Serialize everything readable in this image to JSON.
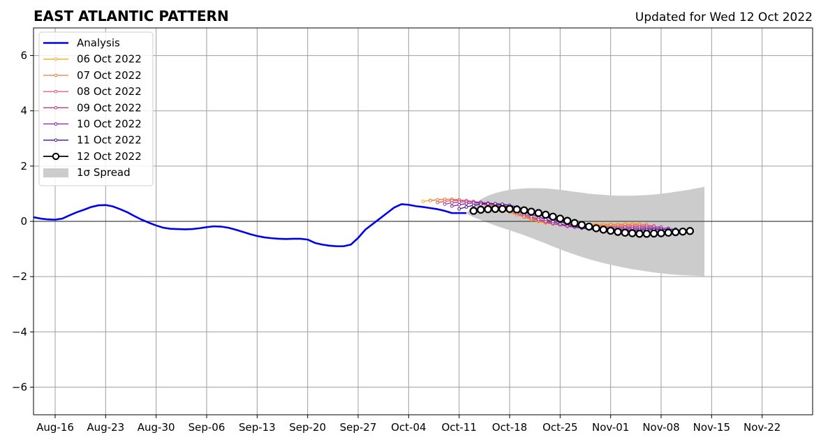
{
  "chart_data": {
    "type": "line",
    "title": "EAST ATLANTIC PATTERN",
    "subtitle": "Updated for Wed 12 Oct 2022",
    "xlabel": "",
    "ylabel": "",
    "x_range": [
      "2022-08-13",
      "2022-11-29"
    ],
    "ylim": [
      -7,
      7
    ],
    "grid": true,
    "legend_position": "top-left",
    "x_ticks": [
      {
        "date": "2022-08-16",
        "label": "Aug-16"
      },
      {
        "date": "2022-08-23",
        "label": "Aug-23"
      },
      {
        "date": "2022-08-30",
        "label": "Aug-30"
      },
      {
        "date": "2022-09-06",
        "label": "Sep-06"
      },
      {
        "date": "2022-09-13",
        "label": "Sep-13"
      },
      {
        "date": "2022-09-20",
        "label": "Sep-20"
      },
      {
        "date": "2022-09-27",
        "label": "Sep-27"
      },
      {
        "date": "2022-10-04",
        "label": "Oct-04"
      },
      {
        "date": "2022-10-11",
        "label": "Oct-11"
      },
      {
        "date": "2022-10-18",
        "label": "Oct-18"
      },
      {
        "date": "2022-10-25",
        "label": "Oct-25"
      },
      {
        "date": "2022-11-01",
        "label": "Nov-01"
      },
      {
        "date": "2022-11-08",
        "label": "Nov-08"
      },
      {
        "date": "2022-11-15",
        "label": "Nov-15"
      },
      {
        "date": "2022-11-22",
        "label": "Nov-22"
      }
    ],
    "y_ticks": [
      {
        "value": 6,
        "label": "6"
      },
      {
        "value": 4,
        "label": "4"
      },
      {
        "value": 2,
        "label": "2"
      },
      {
        "value": 0,
        "label": "0"
      },
      {
        "value": -2,
        "label": "−2"
      },
      {
        "value": -4,
        "label": "−4"
      },
      {
        "value": -6,
        "label": "−6"
      }
    ],
    "analysis": {
      "name": "Analysis",
      "color": "#0000ee",
      "dates": [
        "2022-08-13",
        "2022-08-14",
        "2022-08-15",
        "2022-08-16",
        "2022-08-17",
        "2022-08-18",
        "2022-08-19",
        "2022-08-20",
        "2022-08-21",
        "2022-08-22",
        "2022-08-23",
        "2022-08-24",
        "2022-08-25",
        "2022-08-26",
        "2022-08-27",
        "2022-08-28",
        "2022-08-29",
        "2022-08-30",
        "2022-08-31",
        "2022-09-01",
        "2022-09-02",
        "2022-09-03",
        "2022-09-04",
        "2022-09-05",
        "2022-09-06",
        "2022-09-07",
        "2022-09-08",
        "2022-09-09",
        "2022-09-10",
        "2022-09-11",
        "2022-09-12",
        "2022-09-13",
        "2022-09-14",
        "2022-09-15",
        "2022-09-16",
        "2022-09-17",
        "2022-09-18",
        "2022-09-19",
        "2022-09-20",
        "2022-09-21",
        "2022-09-22",
        "2022-09-23",
        "2022-09-24",
        "2022-09-25",
        "2022-09-26",
        "2022-09-27",
        "2022-09-28",
        "2022-09-29",
        "2022-09-30",
        "2022-10-01",
        "2022-10-02",
        "2022-10-03",
        "2022-10-04",
        "2022-10-05",
        "2022-10-06",
        "2022-10-07",
        "2022-10-08",
        "2022-10-09",
        "2022-10-10",
        "2022-10-11",
        "2022-10-12"
      ],
      "values": [
        0.15,
        0.1,
        0.07,
        0.06,
        0.1,
        0.22,
        0.33,
        0.42,
        0.52,
        0.58,
        0.59,
        0.54,
        0.44,
        0.33,
        0.19,
        0.06,
        -0.05,
        -0.15,
        -0.23,
        -0.27,
        -0.28,
        -0.29,
        -0.28,
        -0.25,
        -0.21,
        -0.18,
        -0.19,
        -0.23,
        -0.3,
        -0.38,
        -0.46,
        -0.53,
        -0.58,
        -0.61,
        -0.63,
        -0.64,
        -0.63,
        -0.63,
        -0.66,
        -0.78,
        -0.84,
        -0.88,
        -0.9,
        -0.9,
        -0.84,
        -0.6,
        -0.3,
        -0.1,
        0.1,
        0.3,
        0.5,
        0.62,
        0.6,
        0.55,
        0.52,
        0.48,
        0.44,
        0.38,
        0.3,
        0.3,
        0.3
      ]
    },
    "forecasts": [
      {
        "name": "06 Oct 2022",
        "color": "#f9a825",
        "start": "2022-10-06",
        "values": [
          0.72,
          0.76,
          0.78,
          0.79,
          0.8,
          0.78,
          0.74,
          0.7,
          0.64,
          0.58,
          0.5,
          0.42,
          0.33,
          0.24,
          0.15,
          0.06,
          -0.01,
          -0.06,
          -0.1,
          -0.12,
          -0.13,
          -0.13,
          -0.12,
          -0.11,
          -0.1,
          -0.1,
          -0.1,
          -0.1,
          -0.09,
          -0.09,
          -0.08
        ]
      },
      {
        "name": "07 Oct 2022",
        "color": "#f07a3a",
        "start": "2022-10-07",
        "values": [
          0.75,
          0.78,
          0.8,
          0.8,
          0.78,
          0.75,
          0.7,
          0.64,
          0.57,
          0.5,
          0.42,
          0.33,
          0.24,
          0.16,
          0.08,
          0.01,
          -0.05,
          -0.09,
          -0.12,
          -0.14,
          -0.15,
          -0.15,
          -0.15,
          -0.14,
          -0.14,
          -0.13,
          -0.13,
          -0.12,
          -0.12,
          -0.11,
          -0.11
        ]
      },
      {
        "name": "08 Oct 2022",
        "color": "#d9536d",
        "start": "2022-10-08",
        "values": [
          0.68,
          0.72,
          0.75,
          0.76,
          0.75,
          0.72,
          0.67,
          0.61,
          0.54,
          0.46,
          0.38,
          0.29,
          0.2,
          0.12,
          0.04,
          -0.03,
          -0.09,
          -0.13,
          -0.16,
          -0.18,
          -0.19,
          -0.2,
          -0.2,
          -0.19,
          -0.19,
          -0.18,
          -0.18,
          -0.17,
          -0.17,
          -0.16,
          -0.16
        ]
      },
      {
        "name": "09 Oct 2022",
        "color": "#b03a92",
        "start": "2022-10-09",
        "values": [
          0.62,
          0.67,
          0.7,
          0.71,
          0.71,
          0.69,
          0.65,
          0.59,
          0.52,
          0.44,
          0.35,
          0.26,
          0.17,
          0.08,
          0.0,
          -0.07,
          -0.13,
          -0.18,
          -0.21,
          -0.23,
          -0.24,
          -0.24,
          -0.24,
          -0.23,
          -0.23,
          -0.22,
          -0.22,
          -0.21,
          -0.21,
          -0.2,
          -0.2
        ]
      },
      {
        "name": "10 Oct 2022",
        "color": "#8a1bab",
        "start": "2022-10-10",
        "values": [
          0.55,
          0.6,
          0.64,
          0.67,
          0.67,
          0.66,
          0.63,
          0.58,
          0.51,
          0.43,
          0.34,
          0.25,
          0.16,
          0.07,
          -0.01,
          -0.09,
          -0.16,
          -0.21,
          -0.25,
          -0.27,
          -0.28,
          -0.29,
          -0.29,
          -0.28,
          -0.28,
          -0.27,
          -0.27,
          -0.26,
          -0.26,
          -0.25,
          -0.25
        ]
      },
      {
        "name": "11 Oct 2022",
        "color": "#4b0d8f",
        "start": "2022-10-11",
        "values": [
          0.45,
          0.52,
          0.58,
          0.62,
          0.64,
          0.64,
          0.62,
          0.58,
          0.52,
          0.44,
          0.35,
          0.26,
          0.17,
          0.08,
          -0.01,
          -0.09,
          -0.17,
          -0.23,
          -0.28,
          -0.31,
          -0.33,
          -0.34,
          -0.34,
          -0.33,
          -0.33,
          -0.32,
          -0.31,
          -0.3,
          -0.3,
          -0.29,
          -0.28
        ]
      },
      {
        "name": "12 Oct 2022",
        "color": "#000000",
        "start": "2022-10-13",
        "values": [
          0.38,
          0.42,
          0.44,
          0.45,
          0.45,
          0.45,
          0.43,
          0.4,
          0.35,
          0.3,
          0.24,
          0.17,
          0.1,
          0.02,
          -0.06,
          -0.13,
          -0.19,
          -0.25,
          -0.3,
          -0.34,
          -0.38,
          -0.41,
          -0.43,
          -0.45,
          -0.45,
          -0.44,
          -0.43,
          -0.41,
          -0.39,
          -0.37,
          -0.35
        ]
      }
    ],
    "spread": {
      "name": "1σ Spread",
      "color": "#cccccc",
      "start": "2022-10-12",
      "upper": [
        0.3,
        0.6,
        0.8,
        0.93,
        1.02,
        1.09,
        1.14,
        1.17,
        1.19,
        1.2,
        1.2,
        1.19,
        1.17,
        1.14,
        1.11,
        1.07,
        1.04,
        1.0,
        0.98,
        0.96,
        0.94,
        0.93,
        0.93,
        0.93,
        0.94,
        0.95,
        0.97,
        1.0,
        1.03,
        1.07,
        1.11,
        1.15,
        1.2,
        1.25
      ],
      "lower": [
        0.28,
        0.15,
        0.05,
        -0.05,
        -0.15,
        -0.24,
        -0.32,
        -0.41,
        -0.5,
        -0.6,
        -0.7,
        -0.8,
        -0.91,
        -1.01,
        -1.11,
        -1.2,
        -1.29,
        -1.37,
        -1.44,
        -1.51,
        -1.57,
        -1.63,
        -1.68,
        -1.73,
        -1.77,
        -1.81,
        -1.85,
        -1.88,
        -1.91,
        -1.93,
        -1.95,
        -1.96,
        -1.97,
        -1.98
      ]
    }
  }
}
